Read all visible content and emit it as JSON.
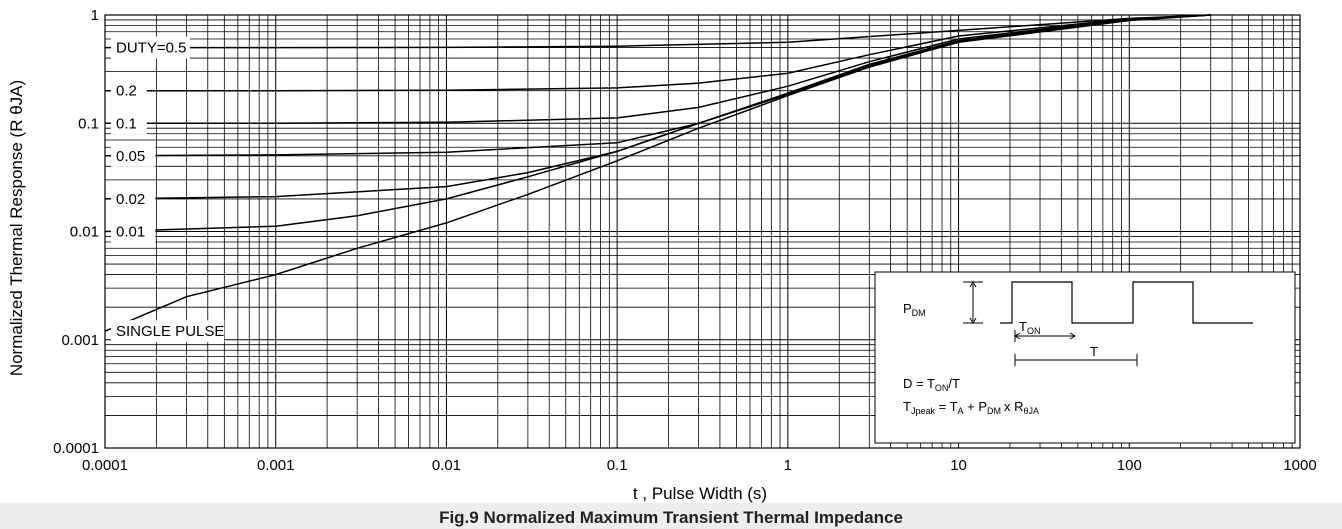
{
  "chart_data": {
    "type": "line",
    "xscale": "log",
    "yscale": "log",
    "xlim": [
      0.0001,
      1000
    ],
    "ylim": [
      0.0001,
      1
    ],
    "grid": true,
    "x_ticks": [
      "0.0001",
      "0.001",
      "0.01",
      "0.1",
      "1",
      "10",
      "100",
      "1000"
    ],
    "y_ticks": [
      "1",
      "0.1",
      "0.01",
      "0.001",
      "0.0001"
    ],
    "xlabel": "t , Pulse Width (s)",
    "ylabel": "Normalized Thermal Response (R θJA)",
    "series": [
      {
        "name": "DUTY=0.5",
        "x": [
          0.0001,
          0.001,
          0.01,
          0.1,
          1,
          10,
          100,
          300
        ],
        "y": [
          0.5,
          0.5,
          0.502,
          0.515,
          0.56,
          0.72,
          0.93,
          1.0
        ]
      },
      {
        "name": "0.2",
        "x": [
          0.0001,
          0.001,
          0.01,
          0.1,
          0.3,
          1,
          3,
          10,
          100,
          300
        ],
        "y": [
          0.2,
          0.2,
          0.202,
          0.212,
          0.235,
          0.29,
          0.43,
          0.64,
          0.92,
          1.0
        ]
      },
      {
        "name": "0.1",
        "x": [
          0.0001,
          0.001,
          0.01,
          0.1,
          0.3,
          1,
          3,
          10,
          100,
          300
        ],
        "y": [
          0.1,
          0.1,
          0.102,
          0.112,
          0.14,
          0.22,
          0.37,
          0.6,
          0.92,
          1.0
        ]
      },
      {
        "name": "0.05",
        "x": [
          0.0001,
          0.001,
          0.01,
          0.1,
          0.3,
          1,
          3,
          10,
          100,
          300
        ],
        "y": [
          0.05,
          0.051,
          0.054,
          0.066,
          0.1,
          0.19,
          0.35,
          0.58,
          0.91,
          1.0
        ]
      },
      {
        "name": "0.02",
        "x": [
          0.0001,
          0.001,
          0.01,
          0.03,
          0.1,
          0.3,
          1,
          3,
          10,
          100,
          300
        ],
        "y": [
          0.02,
          0.021,
          0.026,
          0.035,
          0.055,
          0.1,
          0.185,
          0.34,
          0.57,
          0.9,
          1.0
        ]
      },
      {
        "name": "0.01",
        "x": [
          0.0001,
          0.001,
          0.003,
          0.01,
          0.03,
          0.1,
          0.3,
          1,
          3,
          10,
          100,
          300
        ],
        "y": [
          0.01,
          0.0112,
          0.014,
          0.02,
          0.032,
          0.055,
          0.1,
          0.185,
          0.34,
          0.57,
          0.9,
          1.0
        ]
      },
      {
        "name": "SINGLE PULSE",
        "x": [
          0.0001,
          0.0003,
          0.001,
          0.003,
          0.01,
          0.03,
          0.1,
          0.3,
          1,
          3,
          10,
          100,
          300
        ],
        "y": [
          0.0012,
          0.0025,
          0.004,
          0.007,
          0.012,
          0.022,
          0.045,
          0.09,
          0.18,
          0.33,
          0.56,
          0.89,
          1.0
        ]
      }
    ],
    "inset": {
      "pdm": "P",
      "pdm_sub": "DM",
      "ton": "T",
      "ton_sub": "ON",
      "period": "T",
      "eq1_a": "D = T",
      "eq1_sub": "ON",
      "eq1_b": "/T",
      "eq2_t": "T",
      "eq2_t_sub": "Jpeak",
      "eq2_a": " = T",
      "eq2_a_sub": "A",
      "eq2_b": " + P",
      "eq2_b_sub": "DM",
      "eq2_c": "x R",
      "eq2_c_sub": "θJA"
    },
    "caption": "Fig.9 Normalized Maximum Transient Thermal Impedance"
  }
}
